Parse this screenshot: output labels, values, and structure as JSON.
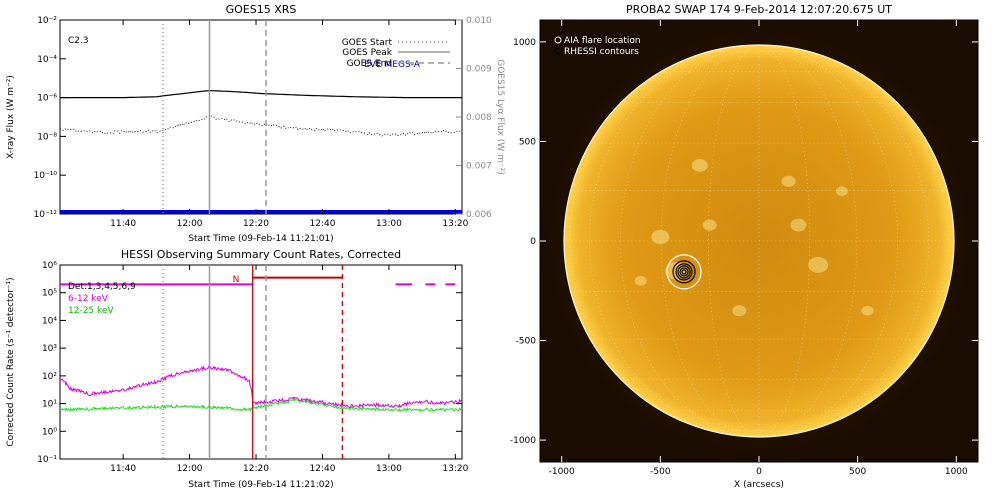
{
  "chart_data": [
    {
      "type": "line",
      "title": "GOES15 XRS",
      "xlabel": "Start Time (09-Feb-14 11:21:01)",
      "ylabel": "X-ray Flux (W m⁻²)",
      "y2label": "GOES15 Lyα Flux (W m⁻²)",
      "y_scale": "log",
      "x_ticks": [
        "11:40",
        "12:00",
        "12:20",
        "12:40",
        "13:00",
        "13:20"
      ],
      "y_ticks": [
        "10⁻¹²",
        "10⁻¹⁰",
        "10⁻⁸",
        "10⁻⁶",
        "10⁻⁴",
        "10⁻²"
      ],
      "y2_ticks": [
        "0.006",
        "0.007",
        "0.008",
        "0.009",
        "0.010"
      ],
      "flare_class": "C2.3",
      "legend": [
        {
          "label": "GOES Start",
          "style": "dotted"
        },
        {
          "label": "GOES Peak",
          "style": "solid"
        },
        {
          "label": "GOES End",
          "style": "dashed"
        }
      ],
      "annotation": "EVE MEGS-A",
      "markers": {
        "start": "11:52",
        "peak": "12:06",
        "end": "12:23"
      },
      "series": [
        {
          "values": [
            {
              "t": "11:21",
              "y": 1e-06
            },
            {
              "t": "11:40",
              "y": 1e-06
            },
            {
              "t": "11:50",
              "y": 1.1e-06
            },
            {
              "t": "11:58",
              "y": 1.6e-06
            },
            {
              "t": "12:06",
              "y": 2.3e-06
            },
            {
              "t": "12:14",
              "y": 2e-06
            },
            {
              "t": "12:22",
              "y": 1.6e-06
            },
            {
              "t": "12:35",
              "y": 1.3e-06
            },
            {
              "t": "12:50",
              "y": 1.1e-06
            },
            {
              "t": "13:05",
              "y": 1e-06
            },
            {
              "t": "13:22",
              "y": 1e-06
            }
          ]
        },
        {
          "values": [
            {
              "t": "11:21",
              "y": 0.00774
            },
            {
              "t": "11:35",
              "y": 0.00768
            },
            {
              "t": "11:50",
              "y": 0.00771
            },
            {
              "t": "11:58",
              "y": 0.00785
            },
            {
              "t": "12:06",
              "y": 0.008
            },
            {
              "t": "12:15",
              "y": 0.0079
            },
            {
              "t": "12:30",
              "y": 0.00778
            },
            {
              "t": "12:45",
              "y": 0.00772
            },
            {
              "t": "13:00",
              "y": 0.00762
            },
            {
              "t": "13:10",
              "y": 0.00768
            },
            {
              "t": "13:22",
              "y": 0.0077
            }
          ]
        },
        {
          "values": [
            {
              "t": "11:21",
              "y": 1e-12
            },
            {
              "t": "13:22",
              "y": 1e-12
            }
          ]
        }
      ]
    },
    {
      "type": "line",
      "title": "HESSI Observing Summary Count Rates, Corrected",
      "xlabel": "Start Time (09-Feb-14 11:21:02)",
      "ylabel": "Corrected Count Rate (s⁻¹ detector⁻¹)",
      "y_scale": "log",
      "x_ticks": [
        "11:40",
        "12:00",
        "12:20",
        "12:40",
        "13:00",
        "13:20"
      ],
      "y_ticks": [
        "10⁻¹",
        "10⁰",
        "10¹",
        "10²",
        "10³",
        "10⁴",
        "10⁵",
        "10⁶"
      ],
      "legend": [
        {
          "label": "Det:1,3,4,5,6,9",
          "color": "#000000"
        },
        {
          "label": "6-12 keV",
          "color": "#dd00dd"
        },
        {
          "label": "12-25 keV",
          "color": "#00dd00"
        }
      ],
      "night_label": "N",
      "markers": {
        "start": "11:52",
        "peak": "12:06",
        "end": "12:23"
      },
      "series": [
        {
          "name": "6-12 keV",
          "values": [
            {
              "t": "11:21",
              "y": 80
            },
            {
              "t": "11:24",
              "y": 35
            },
            {
              "t": "11:30",
              "y": 22
            },
            {
              "t": "11:40",
              "y": 30
            },
            {
              "t": "11:50",
              "y": 60
            },
            {
              "t": "12:00",
              "y": 150
            },
            {
              "t": "12:06",
              "y": 200
            },
            {
              "t": "12:12",
              "y": 150
            },
            {
              "t": "12:18",
              "y": 60
            },
            {
              "t": "12:19",
              "y": 10
            },
            {
              "t": "12:25",
              "y": 12
            },
            {
              "t": "12:32",
              "y": 15
            },
            {
              "t": "12:42",
              "y": 10
            },
            {
              "t": "12:48",
              "y": 8
            },
            {
              "t": "12:55",
              "y": 9
            },
            {
              "t": "13:02",
              "y": 8
            },
            {
              "t": "13:10",
              "y": 12
            },
            {
              "t": "13:15",
              "y": 10
            },
            {
              "t": "13:22",
              "y": 12
            }
          ]
        },
        {
          "name": "12-25 keV",
          "values": [
            {
              "t": "11:21",
              "y": 6
            },
            {
              "t": "11:40",
              "y": 7
            },
            {
              "t": "12:00",
              "y": 8
            },
            {
              "t": "12:18",
              "y": 6
            },
            {
              "t": "12:20",
              "y": 7
            },
            {
              "t": "12:32",
              "y": 13
            },
            {
              "t": "12:45",
              "y": 7
            },
            {
              "t": "13:00",
              "y": 6
            },
            {
              "t": "13:22",
              "y": 6
            }
          ]
        }
      ]
    },
    {
      "type": "heatmap",
      "title": "PROBA2 SWAP 174   9-Feb-2014 12:07:20.675 UT",
      "xlabel": "X (arcsecs)",
      "x_ticks": [
        -1000,
        -500,
        0,
        500,
        1000
      ],
      "y_ticks": [
        -1000,
        -500,
        0,
        500,
        1000
      ],
      "xlim": [
        -1110,
        1110
      ],
      "ylim": [
        -1110,
        1110
      ],
      "legend": [
        "AIA flare location",
        "RHESSI contours"
      ],
      "flare_location": {
        "x": -380,
        "y": -155
      }
    }
  ]
}
